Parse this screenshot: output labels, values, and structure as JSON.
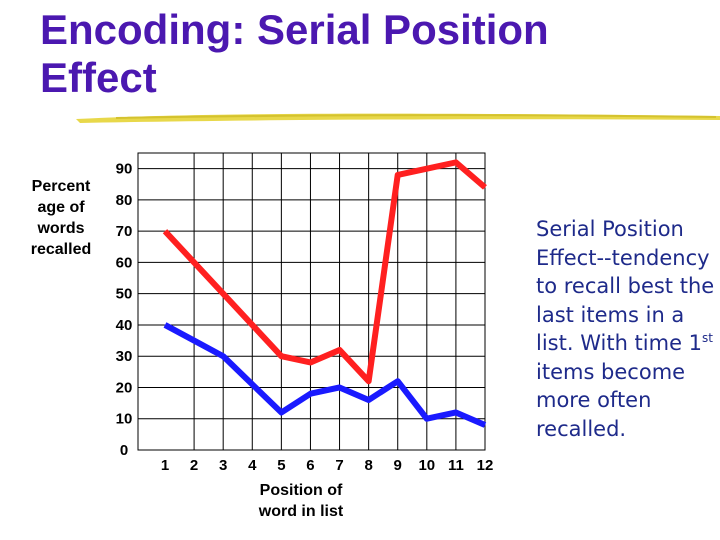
{
  "slide": {
    "title_line1": "Encoding: Serial Position",
    "title_line2": "Effect",
    "side_text": {
      "term": "Serial Position Effect",
      "text": "--tendency to recall best the last items in a list. With time 1",
      "superscript": "st",
      "text_after": " items become more often recalled."
    },
    "colors": {
      "title": "#4b18b0",
      "highlight": "#e8d84a",
      "side_text": "#1e2a8a"
    }
  },
  "chart_data": {
    "type": "line",
    "ylabel": "Percent age of words recalled",
    "xlabel": "Position of word in list",
    "categories": [
      "1",
      "2",
      "3",
      "4",
      "5",
      "6",
      "7",
      "8",
      "9",
      "10",
      "11",
      "12"
    ],
    "y_ticks": [
      "0",
      "10",
      "20",
      "30",
      "40",
      "50",
      "60",
      "70",
      "80",
      "90"
    ],
    "ylim": [
      0,
      95
    ],
    "grid": true,
    "series": [
      {
        "color": "#ff2020",
        "values": [
          70,
          60,
          50,
          40,
          30,
          28,
          32,
          22,
          88,
          90,
          92,
          84
        ]
      },
      {
        "color": "#1a1aff",
        "values": [
          40,
          35,
          30,
          21,
          12,
          18,
          20,
          16,
          22,
          10,
          12,
          8
        ]
      }
    ]
  }
}
